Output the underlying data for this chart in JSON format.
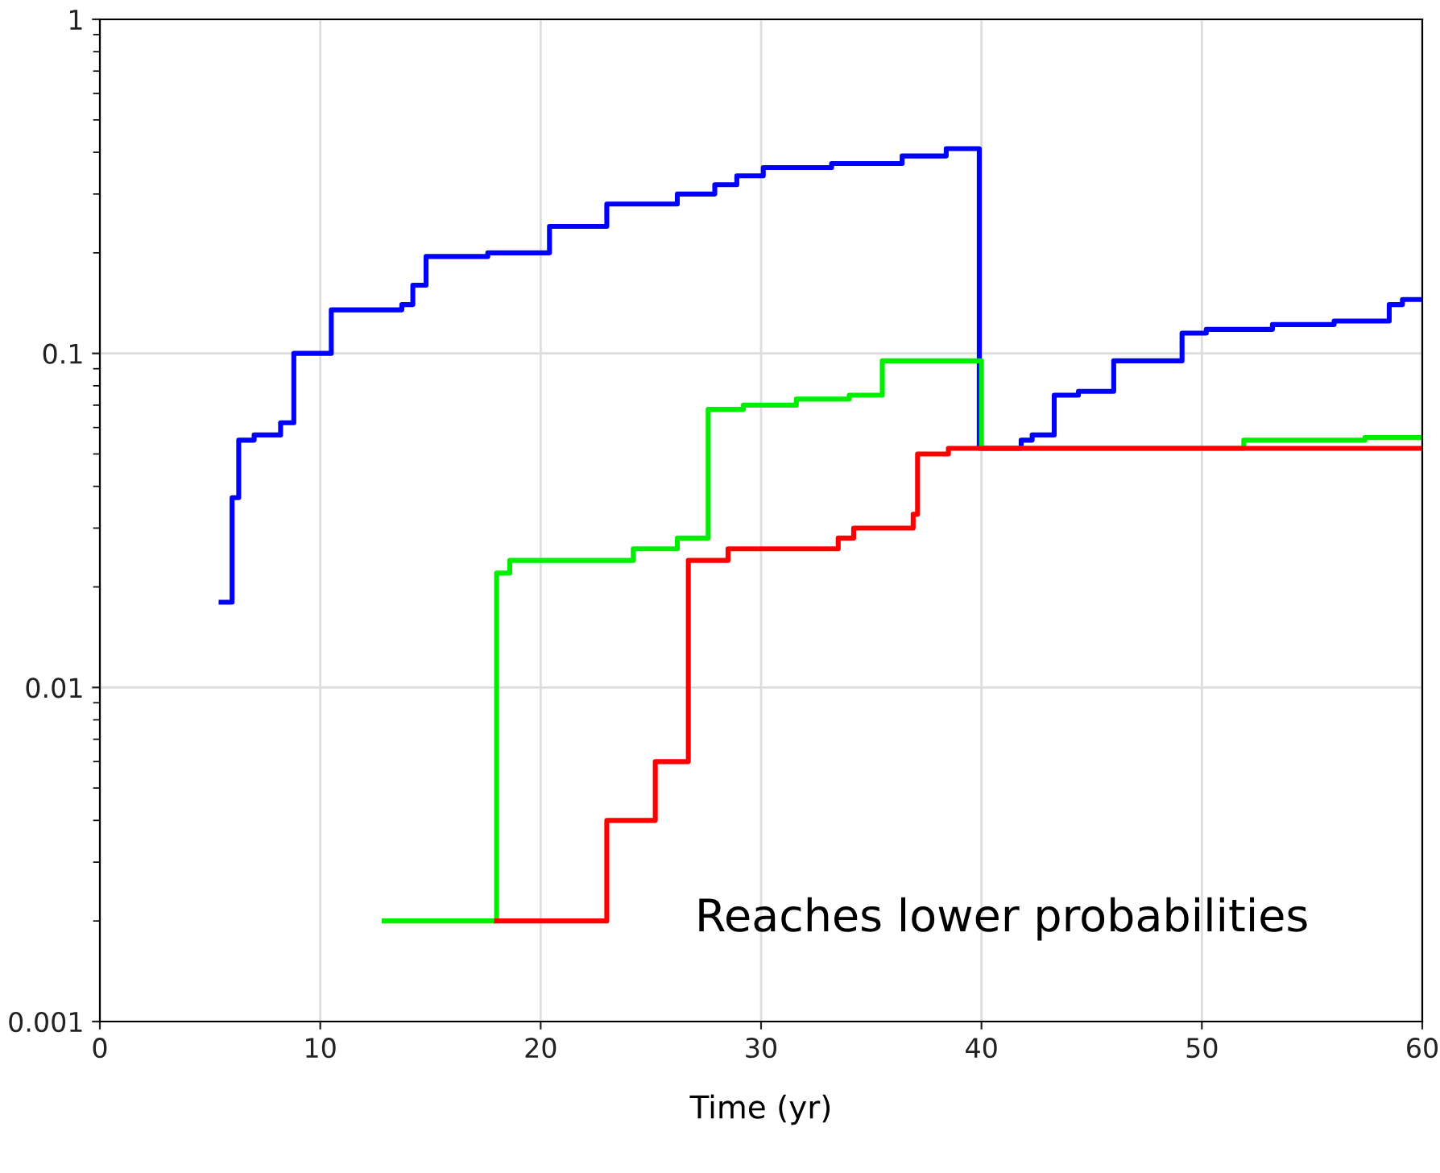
{
  "chart_data": {
    "type": "step",
    "xlabel": "Time (yr)",
    "xlim": [
      0,
      60
    ],
    "xticks": [
      0,
      10,
      20,
      30,
      40,
      50,
      60
    ],
    "ylim": [
      0.001,
      1
    ],
    "yticks": [
      0.001,
      0.01,
      0.1,
      1
    ],
    "log": "y",
    "grid": true,
    "line_style": "solid",
    "marker": "none",
    "annotations": [
      "Reaches lower probabilities"
    ],
    "series": [
      {
        "color": "#0000ff",
        "x": [
          5.5,
          6.0,
          6.3,
          7.0,
          8.2,
          8.8,
          10.5,
          13.7,
          14.2,
          14.8,
          17.6,
          20.4,
          23.0,
          26.2,
          27.9,
          28.9,
          30.1,
          33.2,
          36.4,
          38.4,
          39.9,
          41.8,
          42.3,
          43.3,
          44.4,
          46.0,
          49.1,
          50.2,
          53.2,
          56.0,
          58.5,
          59.1,
          60
        ],
        "values": [
          0.018,
          0.037,
          0.055,
          0.057,
          0.062,
          0.1,
          0.135,
          0.14,
          0.16,
          0.195,
          0.2,
          0.24,
          0.28,
          0.3,
          0.32,
          0.34,
          0.36,
          0.37,
          0.39,
          0.41,
          0.052,
          0.055,
          0.057,
          0.075,
          0.077,
          0.095,
          0.115,
          0.118,
          0.122,
          0.125,
          0.14,
          0.145,
          0.145
        ]
      },
      {
        "color": "#00ee00",
        "x": [
          12.9,
          18.0,
          18.6,
          24.2,
          26.2,
          27.6,
          29.2,
          31.6,
          34.0,
          35.5,
          40.0,
          51.9,
          57.4,
          60
        ],
        "values": [
          0.002,
          0.022,
          0.024,
          0.026,
          0.028,
          0.068,
          0.07,
          0.073,
          0.075,
          0.095,
          0.052,
          0.055,
          0.056,
          0.056
        ]
      },
      {
        "color": "#ff0000",
        "x": [
          18.0,
          23.0,
          25.2,
          26.7,
          28.5,
          33.5,
          34.2,
          36.9,
          37.1,
          38.5,
          60
        ],
        "values": [
          0.002,
          0.004,
          0.006,
          0.024,
          0.026,
          0.028,
          0.03,
          0.033,
          0.05,
          0.052,
          0.052
        ]
      }
    ]
  }
}
